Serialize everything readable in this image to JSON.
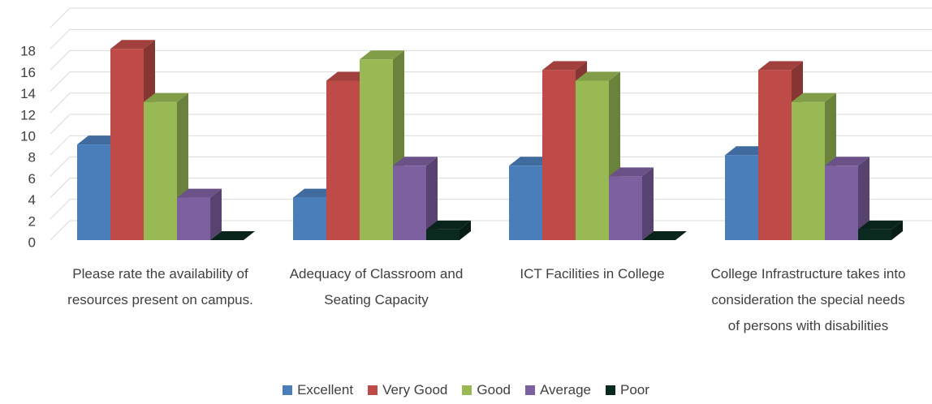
{
  "chart_data": {
    "type": "bar3d",
    "categories": [
      "Please rate the availability of resources present on campus.",
      "Adequacy of Classroom and Seating Capacity",
      "ICT Facilities in College",
      "College Infrastructure takes into consideration the special needs of persons with disabilities"
    ],
    "series": [
      {
        "name": "Excellent",
        "color": "#4a7ebb",
        "values": [
          9,
          4,
          7,
          8
        ]
      },
      {
        "name": "Very Good",
        "color": "#be4b48",
        "values": [
          18,
          15,
          16,
          16
        ]
      },
      {
        "name": "Good",
        "color": "#98b954",
        "values": [
          13,
          17,
          15,
          13
        ]
      },
      {
        "name": "Average",
        "color": "#7d60a0",
        "values": [
          4,
          7,
          6,
          7
        ]
      },
      {
        "name": "Poor",
        "color": "#0b2a1f",
        "values": [
          0,
          1,
          0,
          1
        ]
      }
    ],
    "ylim": [
      0,
      20
    ],
    "yticks": [
      0,
      2,
      4,
      6,
      8,
      10,
      12,
      14,
      16,
      18
    ],
    "grid": true,
    "legend": "bottom"
  }
}
